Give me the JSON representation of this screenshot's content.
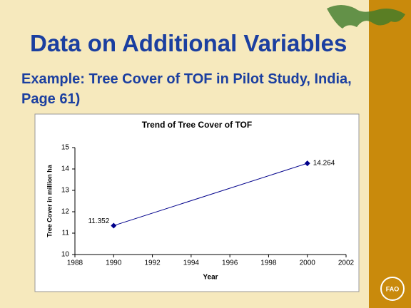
{
  "slide": {
    "title": "Data on Additional Variables",
    "subtitle": "Example: Tree Cover of TOF in Pilot Study, India, Page 61)"
  },
  "chart_data": {
    "type": "line",
    "title": "Trend of Tree Cover of TOF",
    "x_label": "Year",
    "y_label": "Tree Cover in million ha",
    "x": [
      1990,
      2000
    ],
    "values": [
      11.352,
      14.264
    ],
    "color": "#00008b",
    "xlim": [
      1988,
      2002
    ],
    "xticks": [
      1988,
      1990,
      1992,
      1994,
      1996,
      1998,
      2000,
      2002
    ],
    "ylim": [
      10,
      15
    ],
    "yticks": [
      10,
      11,
      12,
      13,
      14,
      15
    ]
  }
}
